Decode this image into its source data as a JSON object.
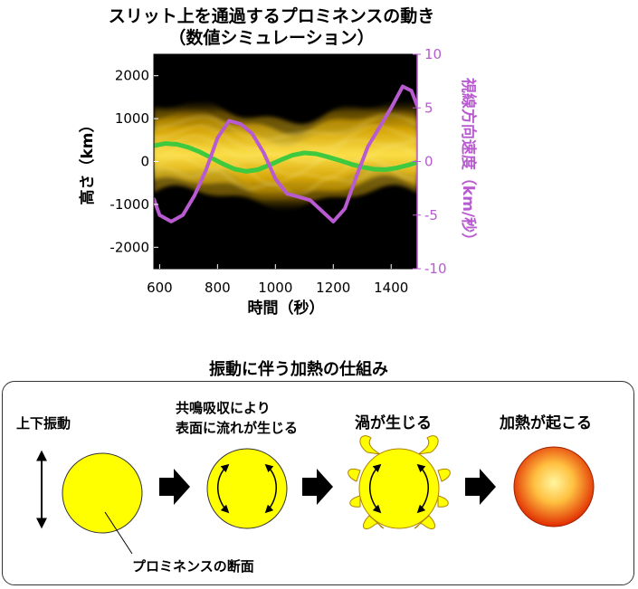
{
  "top_title_line1": "スリット上を通過するプロミネンスの動き",
  "top_title_line2": "（数値シミュレーション）",
  "chart_data": {
    "type": "line",
    "xlabel": "時間（秒）",
    "ylabel_left": "高さ（km）",
    "ylabel_right": "視線方向速度（km/秒）",
    "xlim": [
      580,
      1490
    ],
    "ylim_left": [
      -2500,
      2500
    ],
    "ylim_right": [
      -10,
      10
    ],
    "x_ticks": [
      600,
      800,
      1000,
      1200,
      1400
    ],
    "y_left_ticks": [
      2000,
      1000,
      0,
      -1000,
      -2000
    ],
    "y_right_ticks": [
      10,
      5,
      0,
      -5,
      -10
    ],
    "background": "#000000",
    "series": [
      {
        "axis": "left",
        "color": "#3ec93e",
        "x": [
          580,
          620,
          660,
          700,
          740,
          780,
          820,
          860,
          900,
          940,
          980,
          1020,
          1060,
          1100,
          1140,
          1180,
          1220,
          1260,
          1300,
          1340,
          1380,
          1420,
          1460,
          1490
        ],
        "values": [
          370,
          420,
          400,
          330,
          220,
          80,
          -60,
          -180,
          -230,
          -190,
          -80,
          40,
          150,
          200,
          180,
          110,
          30,
          -60,
          -130,
          -180,
          -190,
          -150,
          -80,
          -20
        ]
      },
      {
        "axis": "right",
        "color": "#b85ad0",
        "x": [
          580,
          600,
          640,
          680,
          720,
          760,
          800,
          840,
          880,
          920,
          960,
          1000,
          1040,
          1080,
          1120,
          1160,
          1200,
          1240,
          1280,
          1320,
          1360,
          1400,
          1440,
          1470,
          1490
        ],
        "values": [
          -3.5,
          -5.0,
          -5.6,
          -5.0,
          -3.2,
          -0.8,
          2.2,
          3.8,
          3.5,
          2.6,
          0.8,
          -1.6,
          -3.0,
          -3.3,
          -3.6,
          -4.6,
          -5.6,
          -4.4,
          -1.4,
          1.4,
          3.2,
          5.0,
          7.0,
          6.6,
          5.2
        ]
      }
    ]
  },
  "bottom_title": "振動に伴う加熱の仕組み",
  "step_oscillation": "上下振動",
  "step_surface_line1": "共鳴吸収により",
  "step_surface_line2": "表面に流れが生じる",
  "step_vortex": "渦が生じる",
  "step_heating": "加熱が起こる",
  "cross_section_label": "プロミネンスの断面",
  "colors": {
    "prominence": "#ffff00",
    "prominence_dark": "#e0b000",
    "heat_outer": "#e03000",
    "heat_inner": "#ffe060",
    "green_line": "#3ec93e",
    "purple_line": "#b85ad0"
  }
}
